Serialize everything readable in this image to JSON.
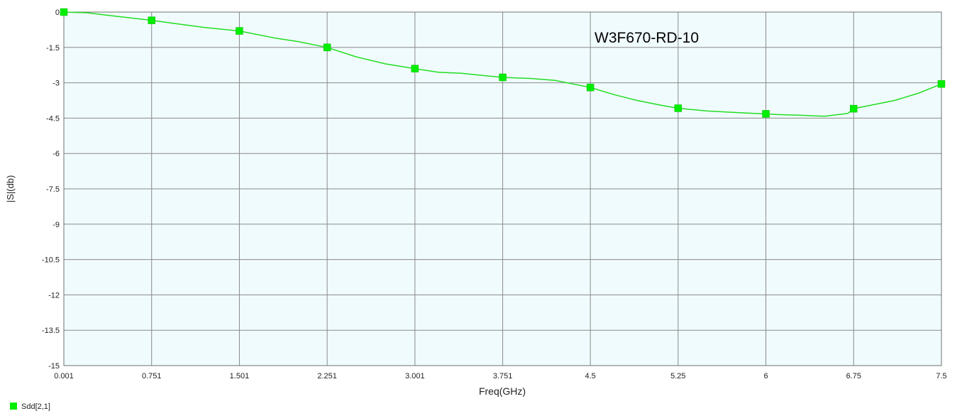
{
  "chart_data": {
    "type": "line",
    "annotation": "W3F670-RD-10",
    "xlabel": "Freq(GHz)",
    "ylabel": "|S|(db)",
    "xlim": [
      0.001,
      7.5
    ],
    "ylim": [
      -15,
      0
    ],
    "grid": true,
    "legend_position": "bottom-left",
    "x_ticks": [
      "0.001",
      "0.751",
      "1.501",
      "2.251",
      "3.001",
      "3.751",
      "4.5",
      "5.25",
      "6",
      "6.75",
      "7.5"
    ],
    "x_tick_values": [
      0.001,
      0.751,
      1.501,
      2.251,
      3.001,
      3.751,
      4.5,
      5.25,
      6,
      6.75,
      7.5
    ],
    "y_ticks": [
      "0",
      "-1.5",
      "-3",
      "-4.5",
      "-6",
      "-7.5",
      "-9",
      "-10.5",
      "-12",
      "-13.5",
      "-15"
    ],
    "y_tick_values": [
      0,
      -1.5,
      -3,
      -4.5,
      -6,
      -7.5,
      -9,
      -10.5,
      -12,
      -13.5,
      -15
    ],
    "series": [
      {
        "name": "Sdd[2,1]",
        "color": "#22dd22",
        "marker_color": "#00ee00",
        "x": [
          0.001,
          0.2,
          0.4,
          0.751,
          1.0,
          1.2,
          1.501,
          1.8,
          2.0,
          2.251,
          2.5,
          2.75,
          3.001,
          3.2,
          3.4,
          3.6,
          3.751,
          4.0,
          4.2,
          4.5,
          4.7,
          4.9,
          5.1,
          5.25,
          5.5,
          5.7,
          5.9,
          6.0,
          6.1,
          6.3,
          6.5,
          6.7,
          6.75,
          6.9,
          7.1,
          7.3,
          7.5
        ],
        "y": [
          0,
          -0.03,
          -0.15,
          -0.35,
          -0.52,
          -0.65,
          -0.8,
          -1.1,
          -1.25,
          -1.5,
          -1.9,
          -2.2,
          -2.4,
          -2.55,
          -2.6,
          -2.7,
          -2.77,
          -2.82,
          -2.9,
          -3.2,
          -3.5,
          -3.75,
          -3.95,
          -4.08,
          -4.2,
          -4.25,
          -4.3,
          -4.32,
          -4.35,
          -4.38,
          -4.42,
          -4.3,
          -4.1,
          -3.95,
          -3.75,
          -3.45,
          -3.05
        ],
        "marker_x": [
          0.001,
          0.751,
          1.501,
          2.251,
          3.001,
          3.751,
          4.5,
          5.25,
          6.0,
          6.75,
          7.5
        ],
        "marker_y": [
          0,
          -0.35,
          -0.8,
          -1.5,
          -2.4,
          -2.77,
          -3.2,
          -4.08,
          -4.32,
          -4.1,
          -3.05
        ]
      }
    ]
  }
}
